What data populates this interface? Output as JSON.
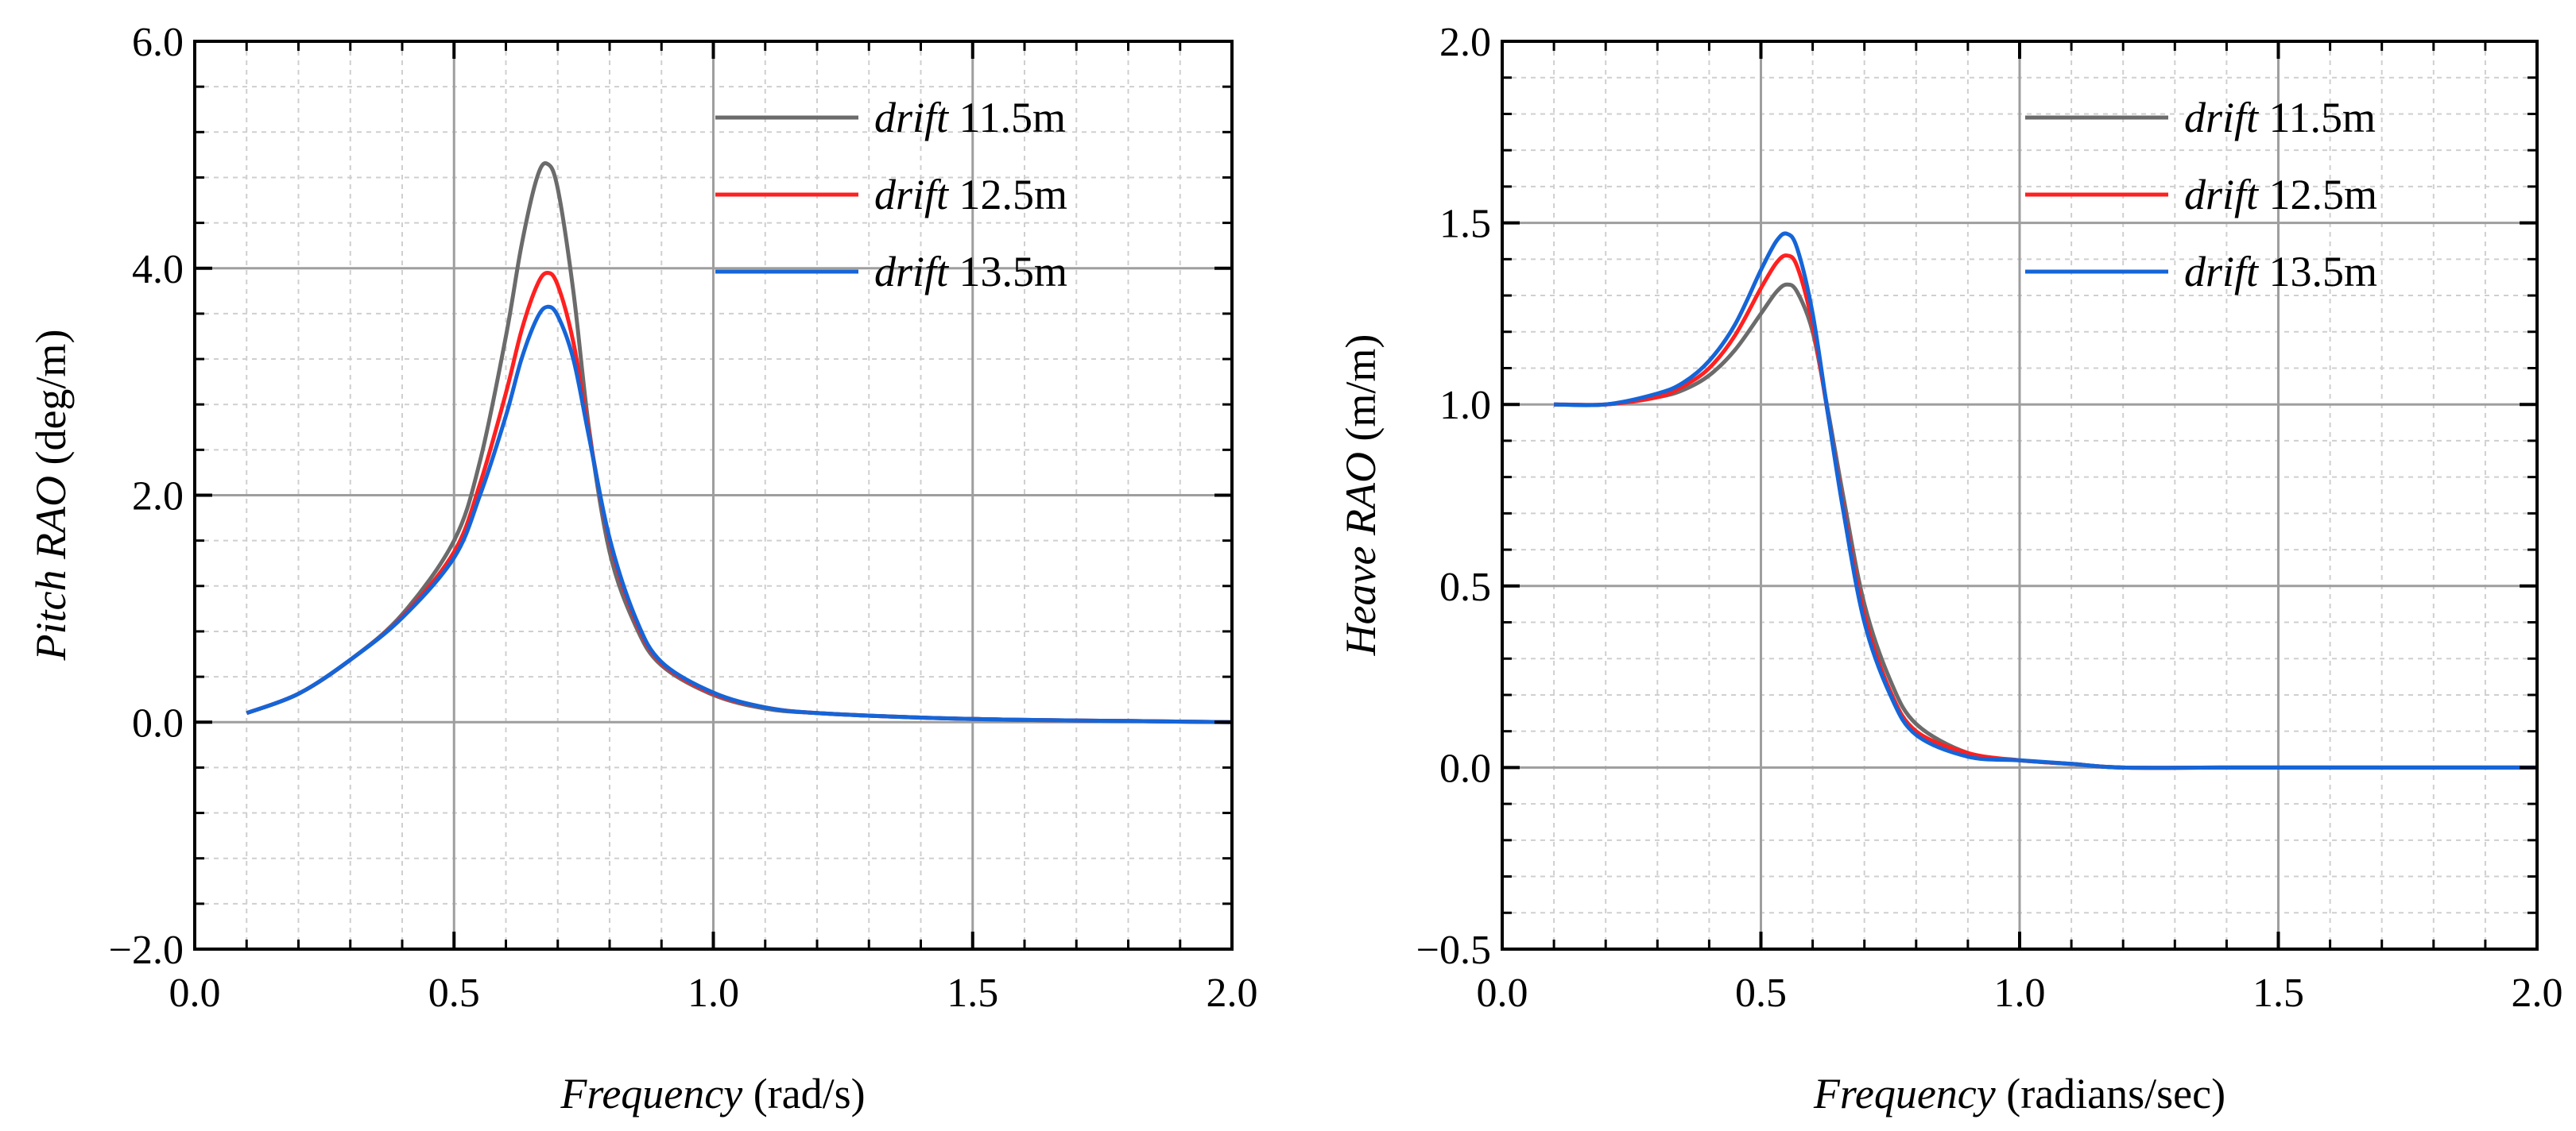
{
  "chart_data": [
    {
      "type": "line",
      "xlabel_italic": "Frequency",
      "xlabel_unit": "(rad/s)",
      "ylabel_italic": "Pitch RAO",
      "ylabel_unit": "(deg/m)",
      "xlim": [
        0.0,
        2.0
      ],
      "ylim": [
        -2.0,
        6.0
      ],
      "x_ticks": [
        0.0,
        0.5,
        1.0,
        1.5,
        2.0
      ],
      "x_tick_labels": [
        "0.0",
        "0.5",
        "1.0",
        "1.5",
        "2.0"
      ],
      "y_ticks": [
        -2.0,
        0.0,
        2.0,
        4.0,
        6.0
      ],
      "y_tick_labels": [
        "−2.0",
        "0.0",
        "2.0",
        "4.0",
        "6.0"
      ],
      "grid": true,
      "legend_position": "top-right",
      "x": [
        0.1,
        0.2,
        0.3,
        0.4,
        0.5,
        0.55,
        0.6,
        0.63,
        0.66,
        0.68,
        0.7,
        0.73,
        0.76,
        0.8,
        0.85,
        0.9,
        1.0,
        1.1,
        1.2,
        1.4,
        1.6,
        1.8,
        2.0
      ],
      "series": [
        {
          "name_italic": "drift",
          "name_value": "11.5m",
          "color": "#6b6b6b",
          "values": [
            0.08,
            0.25,
            0.55,
            0.95,
            1.6,
            2.3,
            3.4,
            4.2,
            4.8,
            4.92,
            4.7,
            3.8,
            2.6,
            1.5,
            0.85,
            0.5,
            0.24,
            0.12,
            0.08,
            0.04,
            0.02,
            0.01,
            0.0
          ]
        },
        {
          "name_italic": "drift",
          "name_value": "12.5m",
          "color": "#ff2020",
          "values": [
            0.08,
            0.25,
            0.55,
            0.93,
            1.5,
            2.1,
            2.9,
            3.45,
            3.85,
            3.96,
            3.85,
            3.35,
            2.55,
            1.6,
            0.9,
            0.52,
            0.25,
            0.13,
            0.08,
            0.04,
            0.02,
            0.01,
            0.0
          ]
        },
        {
          "name_italic": "drift",
          "name_value": "13.5m",
          "color": "#1565d8",
          "values": [
            0.08,
            0.25,
            0.55,
            0.92,
            1.45,
            2.0,
            2.7,
            3.2,
            3.56,
            3.66,
            3.58,
            3.2,
            2.52,
            1.62,
            0.92,
            0.53,
            0.26,
            0.13,
            0.08,
            0.04,
            0.02,
            0.01,
            0.0
          ]
        }
      ]
    },
    {
      "type": "line",
      "xlabel_italic": "Frequency",
      "xlabel_unit": "(radians/sec)",
      "ylabel_italic": "Heave RAO",
      "ylabel_unit": "(m/m)",
      "xlim": [
        0.0,
        2.0
      ],
      "ylim": [
        -0.5,
        2.0
      ],
      "x_ticks": [
        0.0,
        0.5,
        1.0,
        1.5,
        2.0
      ],
      "x_tick_labels": [
        "0.0",
        "0.5",
        "1.0",
        "1.5",
        "2.0"
      ],
      "y_ticks": [
        -0.5,
        0.0,
        0.5,
        1.0,
        1.5,
        2.0
      ],
      "y_tick_labels": [
        "−0.5",
        "0.0",
        "0.5",
        "1.0",
        "1.5",
        "2.0"
      ],
      "grid": true,
      "legend_position": "top-right",
      "x": [
        0.1,
        0.2,
        0.3,
        0.35,
        0.4,
        0.45,
        0.5,
        0.53,
        0.55,
        0.57,
        0.6,
        0.63,
        0.66,
        0.7,
        0.75,
        0.8,
        0.9,
        1.0,
        1.1,
        1.2,
        1.4,
        1.7,
        2.0
      ],
      "series": [
        {
          "name_italic": "drift",
          "name_value": "11.5m",
          "color": "#6b6b6b",
          "values": [
            1.0,
            1.0,
            1.02,
            1.04,
            1.08,
            1.15,
            1.25,
            1.31,
            1.33,
            1.31,
            1.2,
            0.98,
            0.74,
            0.45,
            0.24,
            0.12,
            0.04,
            0.02,
            0.01,
            0.0,
            0.0,
            0.0,
            0.0
          ]
        },
        {
          "name_italic": "drift",
          "name_value": "12.5m",
          "color": "#ff2020",
          "values": [
            1.0,
            1.0,
            1.02,
            1.05,
            1.1,
            1.19,
            1.32,
            1.39,
            1.41,
            1.38,
            1.22,
            0.97,
            0.71,
            0.42,
            0.21,
            0.1,
            0.04,
            0.02,
            0.01,
            0.0,
            0.0,
            0.0,
            0.0
          ]
        },
        {
          "name_italic": "drift",
          "name_value": "13.5m",
          "color": "#1565d8",
          "values": [
            1.0,
            1.0,
            1.03,
            1.06,
            1.12,
            1.22,
            1.37,
            1.45,
            1.47,
            1.43,
            1.25,
            0.97,
            0.7,
            0.4,
            0.2,
            0.09,
            0.03,
            0.02,
            0.01,
            0.0,
            0.0,
            0.0,
            0.0
          ]
        }
      ]
    }
  ]
}
